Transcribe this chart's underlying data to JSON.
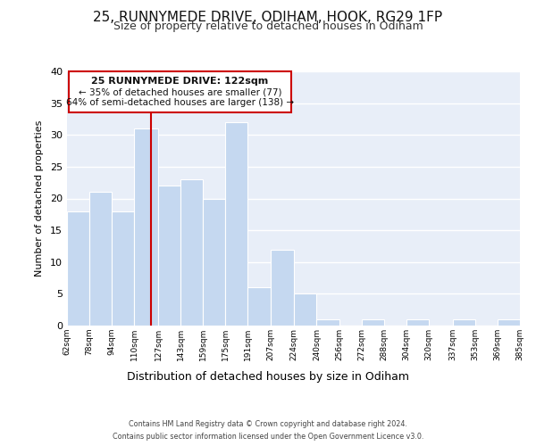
{
  "title": "25, RUNNYMEDE DRIVE, ODIHAM, HOOK, RG29 1FP",
  "subtitle": "Size of property relative to detached houses in Odiham",
  "xlabel": "Distribution of detached houses by size in Odiham",
  "ylabel": "Number of detached properties",
  "bins": [
    "62sqm",
    "78sqm",
    "94sqm",
    "110sqm",
    "127sqm",
    "143sqm",
    "159sqm",
    "175sqm",
    "191sqm",
    "207sqm",
    "224sqm",
    "240sqm",
    "256sqm",
    "272sqm",
    "288sqm",
    "304sqm",
    "320sqm",
    "337sqm",
    "353sqm",
    "369sqm",
    "385sqm"
  ],
  "bin_edges": [
    62,
    78,
    94,
    110,
    127,
    143,
    159,
    175,
    191,
    207,
    224,
    240,
    256,
    272,
    288,
    304,
    320,
    337,
    353,
    369,
    385
  ],
  "values": [
    18,
    21,
    18,
    31,
    22,
    23,
    20,
    32,
    6,
    12,
    5,
    1,
    0,
    1,
    0,
    1,
    0,
    1,
    0,
    1
  ],
  "bar_color": "#c5d8f0",
  "bar_edge_color": "#ffffff",
  "marker_value": 122,
  "marker_color": "#cc0000",
  "ylim": [
    0,
    40
  ],
  "yticks": [
    0,
    5,
    10,
    15,
    20,
    25,
    30,
    35,
    40
  ],
  "annotation_title": "25 RUNNYMEDE DRIVE: 122sqm",
  "annotation_line1": "← 35% of detached houses are smaller (77)",
  "annotation_line2": "64% of semi-detached houses are larger (138) →",
  "annotation_box_color": "#ffffff",
  "annotation_box_edge": "#cc0000",
  "footer_line1": "Contains HM Land Registry data © Crown copyright and database right 2024.",
  "footer_line2": "Contains public sector information licensed under the Open Government Licence v3.0.",
  "background_color": "#e8eef8",
  "grid_color": "#ffffff"
}
